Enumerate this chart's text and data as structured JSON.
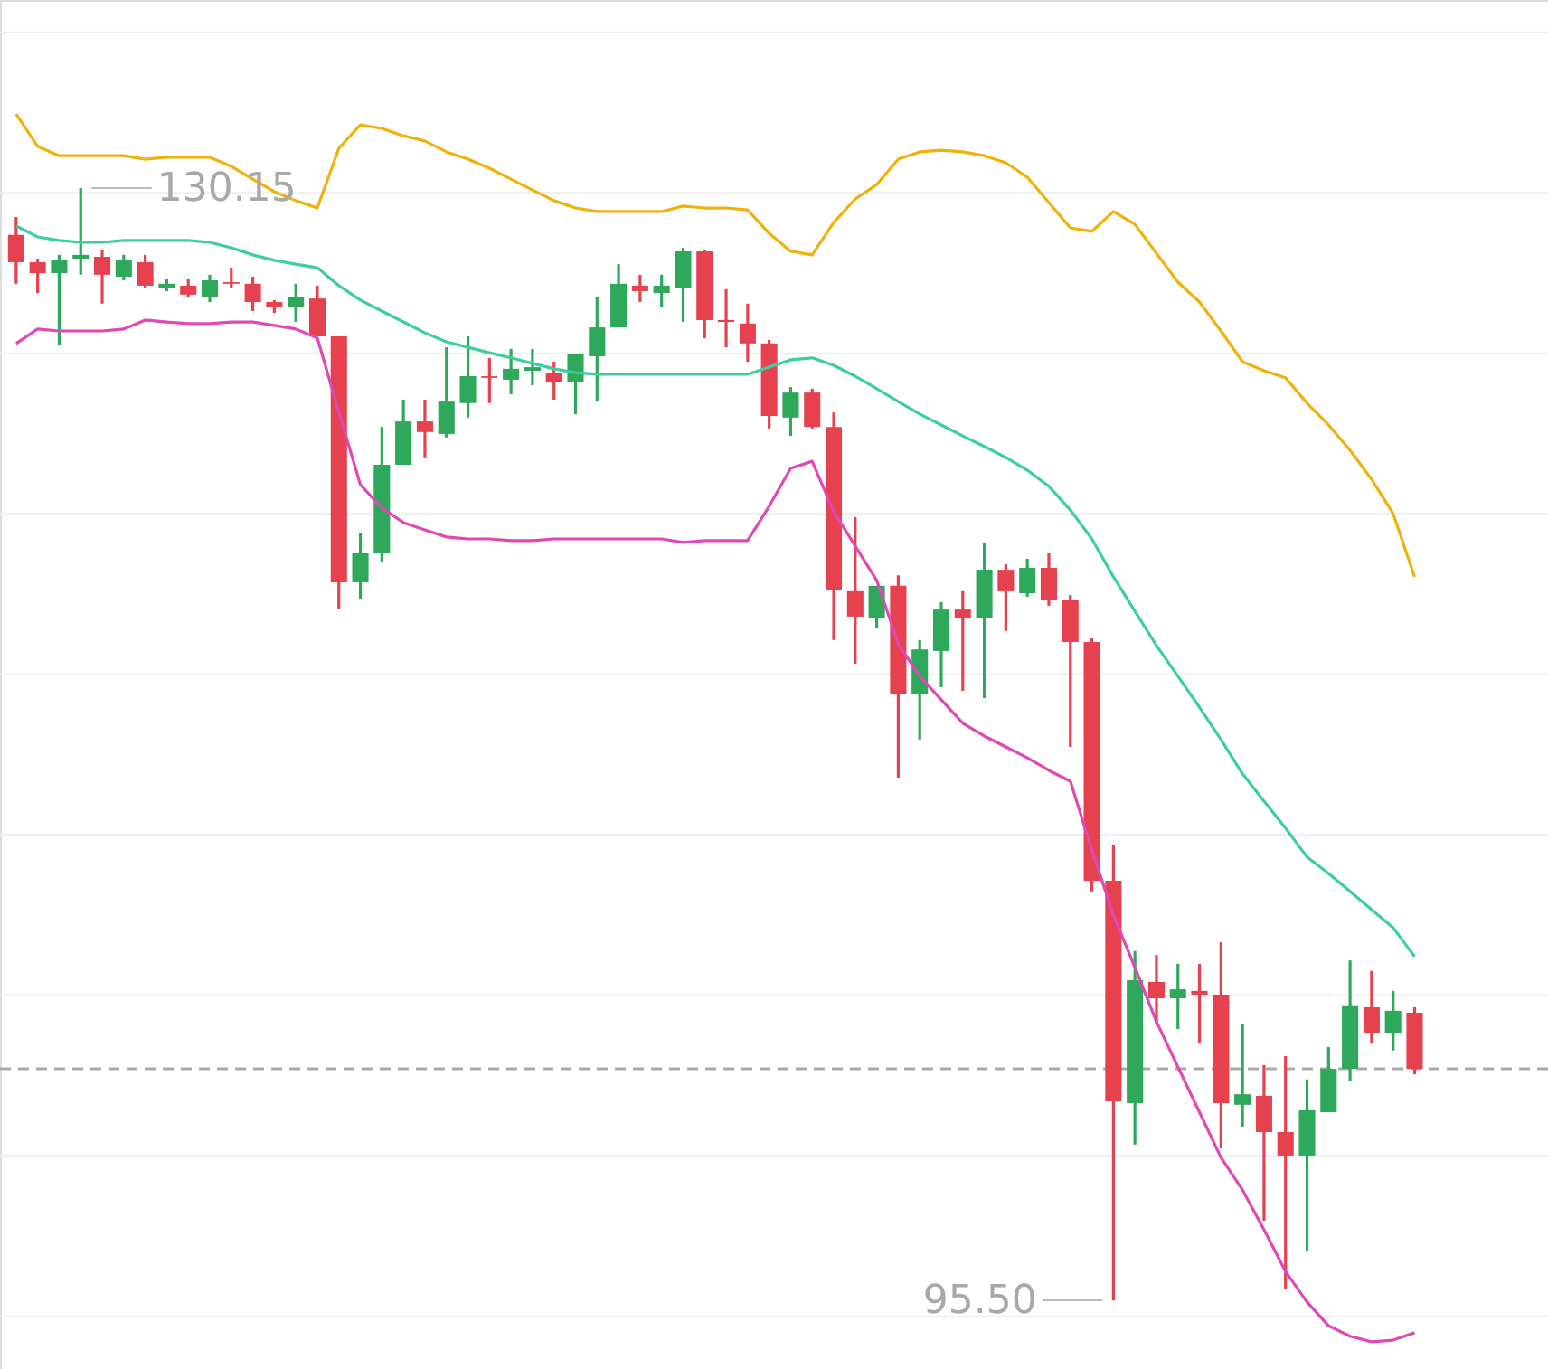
{
  "chart_data": {
    "type": "candlestick",
    "categories": [
      null,
      null,
      null,
      null,
      null,
      null,
      null,
      null,
      null,
      null,
      null,
      null,
      null,
      null,
      null,
      null,
      null,
      null,
      null,
      null,
      null,
      null,
      null,
      null,
      null,
      null,
      null,
      null,
      null,
      null,
      null,
      null,
      null,
      null,
      null,
      null,
      null,
      null,
      null,
      null,
      null,
      null,
      null,
      null,
      null,
      null,
      null,
      null,
      null,
      null,
      null,
      null,
      null,
      null,
      null,
      null,
      null,
      null,
      null,
      null,
      null,
      null,
      null,
      null,
      null,
      null
    ],
    "ohlc": [
      [
        128.69,
        129.25,
        127.17,
        127.84
      ],
      [
        127.84,
        127.95,
        126.88,
        127.5
      ],
      [
        127.5,
        128.07,
        125.25,
        127.9
      ],
      [
        127.95,
        130.15,
        127.45,
        128.07
      ],
      [
        128.01,
        128.24,
        126.55,
        127.45
      ],
      [
        127.39,
        128.07,
        127.28,
        127.9
      ],
      [
        127.84,
        128.07,
        127.05,
        127.11
      ],
      [
        127.05,
        127.33,
        126.94,
        127.17
      ],
      [
        127.11,
        127.33,
        126.77,
        126.83
      ],
      [
        126.77,
        127.45,
        126.6,
        127.28
      ],
      [
        127.22,
        127.67,
        127.05,
        127.17
      ],
      [
        127.17,
        127.39,
        126.32,
        126.6
      ],
      [
        126.6,
        126.66,
        126.26,
        126.43
      ],
      [
        126.43,
        127.17,
        125.98,
        126.77
      ],
      [
        126.71,
        127.11,
        125.53,
        125.53
      ],
      [
        125.53,
        125.53,
        117.02,
        117.87
      ],
      [
        117.87,
        119.39,
        117.36,
        118.77
      ],
      [
        118.77,
        122.71,
        118.49,
        121.53
      ],
      [
        121.53,
        123.56,
        121.53,
        122.88
      ],
      [
        122.88,
        123.56,
        121.76,
        122.55
      ],
      [
        122.49,
        125.19,
        122.38,
        123.5
      ],
      [
        123.45,
        125.53,
        123.0,
        124.29
      ],
      [
        124.29,
        124.86,
        123.45,
        124.24
      ],
      [
        124.18,
        125.14,
        123.73,
        124.52
      ],
      [
        124.46,
        125.14,
        124.01,
        124.57
      ],
      [
        124.4,
        124.74,
        123.56,
        124.12
      ],
      [
        124.12,
        124.97,
        123.11,
        124.97
      ],
      [
        124.91,
        126.77,
        123.5,
        125.81
      ],
      [
        125.81,
        127.78,
        125.81,
        127.17
      ],
      [
        127.11,
        127.45,
        126.6,
        126.94
      ],
      [
        126.88,
        127.45,
        126.43,
        127.11
      ],
      [
        127.05,
        128.29,
        125.98,
        128.18
      ],
      [
        128.18,
        128.24,
        125.47,
        126.04
      ],
      [
        126.04,
        127.0,
        125.19,
        125.98
      ],
      [
        125.93,
        126.55,
        124.74,
        125.31
      ],
      [
        125.31,
        125.42,
        122.66,
        123.05
      ],
      [
        123.0,
        123.95,
        122.43,
        123.78
      ],
      [
        123.78,
        123.9,
        122.66,
        122.71
      ],
      [
        122.71,
        123.16,
        116.07,
        117.64
      ],
      [
        117.59,
        119.9,
        115.33,
        116.8
      ],
      [
        116.74,
        117.76,
        116.46,
        117.76
      ],
      [
        117.76,
        118.09,
        111.78,
        114.38
      ],
      [
        114.38,
        116.07,
        112.97,
        115.78
      ],
      [
        115.73,
        117.25,
        114.6,
        117.02
      ],
      [
        117.02,
        117.59,
        114.49,
        116.74
      ],
      [
        116.74,
        119.11,
        114.26,
        118.26
      ],
      [
        118.26,
        118.43,
        116.35,
        117.59
      ],
      [
        117.53,
        118.6,
        117.42,
        118.32
      ],
      [
        118.32,
        118.77,
        117.14,
        117.31
      ],
      [
        117.31,
        117.47,
        112.74,
        116.01
      ],
      [
        116.01,
        116.12,
        108.24,
        108.57
      ],
      [
        108.57,
        109.7,
        95.5,
        101.7
      ],
      [
        101.64,
        106.38,
        100.35,
        105.47
      ],
      [
        105.42,
        106.26,
        104.12,
        104.91
      ],
      [
        104.91,
        105.98,
        103.95,
        105.19
      ],
      [
        105.14,
        105.98,
        103.5,
        105.02
      ],
      [
        105.02,
        106.66,
        100.23,
        101.64
      ],
      [
        101.59,
        104.12,
        100.91,
        101.92
      ],
      [
        101.87,
        102.83,
        97.98,
        100.74
      ],
      [
        100.74,
        103.11,
        95.84,
        100.01
      ],
      [
        100.01,
        102.38,
        97.02,
        101.42
      ],
      [
        101.36,
        103.39,
        101.36,
        102.71
      ],
      [
        102.71,
        106.09,
        102.32,
        104.69
      ],
      [
        104.63,
        105.76,
        103.5,
        103.84
      ],
      [
        103.84,
        105.14,
        103.28,
        104.52
      ],
      [
        104.46,
        104.63,
        102.54,
        102.71
      ]
    ],
    "colors": [
      "#e5414e",
      "#e5414e",
      "#2ea85a",
      "#2ea85a",
      "#e5414e",
      "#2ea85a",
      "#e5414e",
      "#2ea85a",
      "#e5414e",
      "#2ea85a",
      "#e5414e",
      "#e5414e",
      "#e5414e",
      "#2ea85a",
      "#e5414e",
      "#e5414e",
      "#2ea85a",
      "#2ea85a",
      "#2ea85a",
      "#e5414e",
      "#2ea85a",
      "#2ea85a",
      "#e5414e",
      "#2ea85a",
      "#2ea85a",
      "#e5414e",
      "#2ea85a",
      "#2ea85a",
      "#2ea85a",
      "#e5414e",
      "#2ea85a",
      "#2ea85a",
      "#e5414e",
      "#e5414e",
      "#e5414e",
      "#e5414e",
      "#2ea85a",
      "#e5414e",
      "#e5414e",
      "#e5414e",
      "#2ea85a",
      "#e5414e",
      "#2ea85a",
      "#2ea85a",
      "#e5414e",
      "#2ea85a",
      "#e5414e",
      "#2ea85a",
      "#e5414e",
      "#e5414e",
      "#e5414e",
      "#e5414e",
      "#2ea85a",
      "#e5414e",
      "#2ea85a",
      "#e5414e",
      "#e5414e",
      "#2ea85a",
      "#e5414e",
      "#e5414e",
      "#2ea85a",
      "#2ea85a",
      "#2ea85a",
      "#e5414e",
      "#2ea85a",
      "#e5414e"
    ],
    "series": [
      {
        "type": "line",
        "color": "#f0b20a",
        "values": [
          132.46,
          131.45,
          131.16,
          131.16,
          131.16,
          131.16,
          131.05,
          131.11,
          131.11,
          131.11,
          130.83,
          130.43,
          130.04,
          129.76,
          129.53,
          131.39,
          132.12,
          132.01,
          131.78,
          131.62,
          131.28,
          131.05,
          130.77,
          130.43,
          130.09,
          129.76,
          129.53,
          129.42,
          129.42,
          129.42,
          129.42,
          129.59,
          129.53,
          129.53,
          129.47,
          128.74,
          128.18,
          128.07,
          129.08,
          129.81,
          130.26,
          131.05,
          131.28,
          131.33,
          131.28,
          131.16,
          130.94,
          130.49,
          129.7,
          128.91,
          128.8,
          129.42,
          129.02,
          128.12,
          127.22,
          126.6,
          125.7,
          124.74,
          124.46,
          124.24,
          123.45,
          122.77,
          121.98,
          121.08,
          120.01,
          118.04
        ]
      },
      {
        "type": "line",
        "color": "#3ccf9e",
        "values": [
          128.97,
          128.63,
          128.52,
          128.46,
          128.46,
          128.52,
          128.52,
          128.52,
          128.52,
          128.46,
          128.29,
          128.07,
          127.9,
          127.78,
          127.67,
          127.11,
          126.66,
          126.32,
          125.98,
          125.64,
          125.36,
          125.19,
          125.02,
          124.86,
          124.69,
          124.52,
          124.4,
          124.35,
          124.35,
          124.35,
          124.35,
          124.35,
          124.35,
          124.35,
          124.35,
          124.57,
          124.8,
          124.86,
          124.63,
          124.29,
          123.9,
          123.5,
          123.11,
          122.77,
          122.43,
          122.1,
          121.76,
          121.36,
          120.86,
          120.12,
          119.22,
          118.04,
          116.97,
          115.9,
          114.94,
          113.98,
          112.97,
          111.9,
          111.05,
          110.21,
          109.31,
          108.8,
          108.24,
          107.67,
          107.11,
          106.21
        ]
      },
      {
        "type": "line",
        "color": "#e048b6",
        "values": [
          125.31,
          125.76,
          125.7,
          125.7,
          125.7,
          125.76,
          126.04,
          125.98,
          125.93,
          125.93,
          125.98,
          125.98,
          125.87,
          125.76,
          125.48,
          123.17,
          120.91,
          120.18,
          119.73,
          119.5,
          119.28,
          119.22,
          119.22,
          119.17,
          119.17,
          119.22,
          119.22,
          119.22,
          119.22,
          119.22,
          119.22,
          119.11,
          119.17,
          119.17,
          119.17,
          120.24,
          121.42,
          121.64,
          120.07,
          119.0,
          117.93,
          115.95,
          114.94,
          114.21,
          113.48,
          113.08,
          112.74,
          112.4,
          112.01,
          111.67,
          109.53,
          107.5,
          105.87,
          104.18,
          102.77,
          101.36,
          99.95,
          98.94,
          97.7,
          96.4,
          95.45,
          94.71,
          94.38,
          94.21,
          94.26,
          94.49
        ]
      }
    ],
    "annotations": [
      "130.15",
      "95.50"
    ],
    "ref_lines": [
      {
        "axis": "y",
        "value": 102.71,
        "color": "#aaaaaa",
        "line_style": "dashed"
      }
    ],
    "ylim": [
      93.36,
      136.01
    ],
    "yticks": [
      {
        "value": 95,
        "label": null
      },
      {
        "value": 100,
        "label": null
      },
      {
        "value": 105,
        "label": null
      },
      {
        "value": 110,
        "label": null
      },
      {
        "value": 115,
        "label": null
      },
      {
        "value": 120,
        "label": null
      },
      {
        "value": 125,
        "label": null
      },
      {
        "value": 130,
        "label": null
      },
      {
        "value": 135,
        "label": null
      }
    ],
    "grid": "y",
    "tick_labels": false,
    "line_style": "solid",
    "marker": "none"
  }
}
